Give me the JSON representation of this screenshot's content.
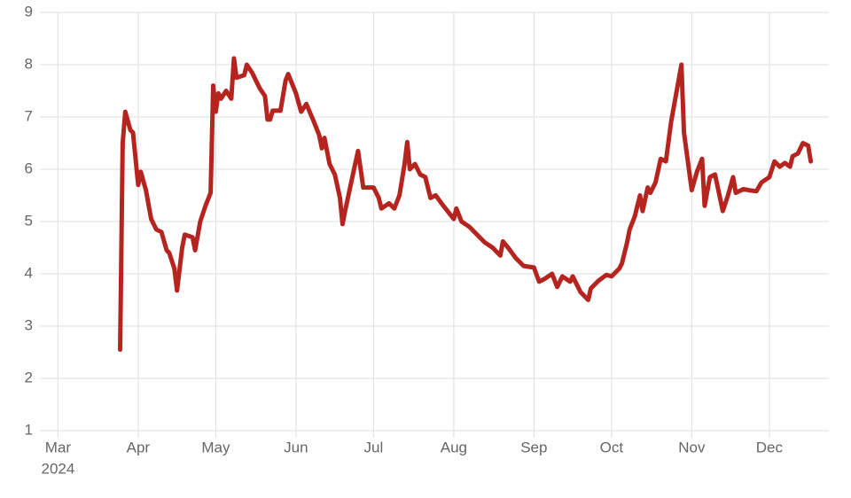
{
  "chart_data": {
    "type": "line",
    "x": [
      "2024-03-25",
      "2024-03-26",
      "2024-03-27",
      "2024-03-29",
      "2024-03-30",
      "2024-04-01",
      "2024-04-02",
      "2024-04-04",
      "2024-04-06",
      "2024-04-08",
      "2024-04-10",
      "2024-04-12",
      "2024-04-13",
      "2024-04-15",
      "2024-04-16",
      "2024-04-18",
      "2024-04-19",
      "2024-04-22",
      "2024-04-23",
      "2024-04-25",
      "2024-04-27",
      "2024-04-29",
      "2024-04-30",
      "2024-05-01",
      "2024-05-02",
      "2024-05-03",
      "2024-05-05",
      "2024-05-07",
      "2024-05-08",
      "2024-05-09",
      "2024-05-12",
      "2024-05-13",
      "2024-05-15",
      "2024-05-18",
      "2024-05-20",
      "2024-05-21",
      "2024-05-22",
      "2024-05-23",
      "2024-05-26",
      "2024-05-28",
      "2024-05-29",
      "2024-06-01",
      "2024-06-03",
      "2024-06-05",
      "2024-06-08",
      "2024-06-10",
      "2024-06-11",
      "2024-06-12",
      "2024-06-14",
      "2024-06-16",
      "2024-06-18",
      "2024-06-19",
      "2024-06-20",
      "2024-06-23",
      "2024-06-25",
      "2024-06-27",
      "2024-07-01",
      "2024-07-03",
      "2024-07-04",
      "2024-07-07",
      "2024-07-09",
      "2024-07-11",
      "2024-07-13",
      "2024-07-14",
      "2024-07-15",
      "2024-07-17",
      "2024-07-19",
      "2024-07-21",
      "2024-07-23",
      "2024-07-25",
      "2024-07-28",
      "2024-08-01",
      "2024-08-02",
      "2024-08-04",
      "2024-08-07",
      "2024-08-10",
      "2024-08-13",
      "2024-08-16",
      "2024-08-19",
      "2024-08-20",
      "2024-08-22",
      "2024-08-25",
      "2024-08-28",
      "2024-09-01",
      "2024-09-03",
      "2024-09-05",
      "2024-09-08",
      "2024-09-10",
      "2024-09-12",
      "2024-09-15",
      "2024-09-16",
      "2024-09-19",
      "2024-09-22",
      "2024-09-23",
      "2024-09-26",
      "2024-09-29",
      "2024-10-01",
      "2024-10-04",
      "2024-10-05",
      "2024-10-07",
      "2024-10-08",
      "2024-10-10",
      "2024-10-12",
      "2024-10-13",
      "2024-10-15",
      "2024-10-16",
      "2024-10-18",
      "2024-10-20",
      "2024-10-22",
      "2024-10-24",
      "2024-10-28",
      "2024-10-29",
      "2024-11-01",
      "2024-11-03",
      "2024-11-05",
      "2024-11-06",
      "2024-11-08",
      "2024-11-10",
      "2024-11-13",
      "2024-11-15",
      "2024-11-17",
      "2024-11-18",
      "2024-11-21",
      "2024-11-23",
      "2024-11-26",
      "2024-11-28",
      "2024-12-01",
      "2024-12-03",
      "2024-12-05",
      "2024-12-07",
      "2024-12-09",
      "2024-12-10",
      "2024-12-12",
      "2024-12-14",
      "2024-12-16",
      "2024-12-17"
    ],
    "series": [
      {
        "color": "#b5241f",
        "values": [
          2.55,
          6.5,
          7.1,
          6.75,
          6.7,
          5.7,
          5.95,
          5.6,
          5.05,
          4.85,
          4.8,
          4.45,
          4.4,
          4.1,
          3.68,
          4.5,
          4.75,
          4.7,
          4.45,
          5.0,
          5.3,
          5.55,
          7.6,
          7.1,
          7.45,
          7.35,
          7.5,
          7.35,
          8.12,
          7.75,
          7.8,
          8.0,
          7.85,
          7.55,
          7.4,
          6.95,
          6.95,
          7.12,
          7.12,
          7.7,
          7.82,
          7.45,
          7.1,
          7.25,
          6.9,
          6.65,
          6.4,
          6.6,
          6.1,
          5.9,
          5.45,
          4.95,
          5.2,
          5.9,
          6.35,
          5.65,
          5.65,
          5.45,
          5.25,
          5.35,
          5.25,
          5.5,
          6.1,
          6.52,
          6.0,
          6.1,
          5.9,
          5.85,
          5.45,
          5.5,
          5.3,
          5.05,
          5.25,
          5.0,
          4.9,
          4.75,
          4.6,
          4.5,
          4.35,
          4.62,
          4.5,
          4.3,
          4.15,
          4.12,
          3.85,
          3.9,
          4.0,
          3.75,
          3.95,
          3.85,
          3.95,
          3.65,
          3.5,
          3.72,
          3.87,
          3.98,
          3.95,
          4.1,
          4.2,
          4.6,
          4.85,
          5.1,
          5.5,
          5.2,
          5.65,
          5.55,
          5.75,
          6.2,
          6.15,
          6.9,
          8.0,
          6.7,
          5.6,
          5.95,
          6.2,
          5.3,
          5.85,
          5.9,
          5.2,
          5.5,
          5.85,
          5.55,
          5.62,
          5.6,
          5.58,
          5.75,
          5.85,
          6.15,
          6.05,
          6.12,
          6.05,
          6.25,
          6.3,
          6.5,
          6.45,
          6.15
        ]
      }
    ],
    "xlim": [
      "2024-02-23",
      "2024-12-24"
    ],
    "xticks": [
      {
        "value": "2024-03-01",
        "label": "Mar"
      },
      {
        "value": "2024-04-01",
        "label": "Apr"
      },
      {
        "value": "2024-05-01",
        "label": "May"
      },
      {
        "value": "2024-06-01",
        "label": "Jun"
      },
      {
        "value": "2024-07-01",
        "label": "Jul"
      },
      {
        "value": "2024-08-01",
        "label": "Aug"
      },
      {
        "value": "2024-09-01",
        "label": "Sep"
      },
      {
        "value": "2024-10-01",
        "label": "Oct"
      },
      {
        "value": "2024-11-01",
        "label": "Nov"
      },
      {
        "value": "2024-12-01",
        "label": "Dec"
      }
    ],
    "year_label": "2024",
    "ylim": [
      1,
      9
    ],
    "yticks": [
      1,
      2,
      3,
      4,
      5,
      6,
      7,
      8,
      9
    ],
    "grid": true
  }
}
